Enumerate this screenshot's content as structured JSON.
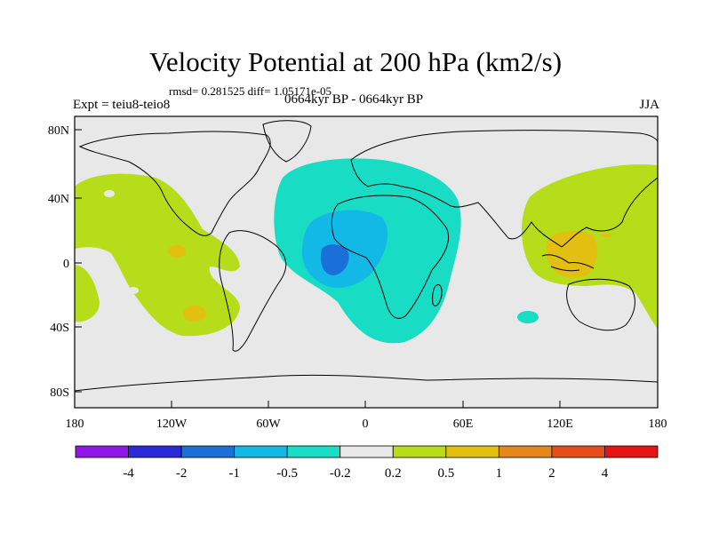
{
  "title": "Velocity Potential at 200 hPa (km2/s)",
  "stats": "rmsd= 0.281525  diff= 1.05171e-05",
  "left_label": "Expt = teiu8-teio8",
  "center_label": "0664kyr BP - 0664kyr BP",
  "right_label": "JJA",
  "lat_labels": [
    "80N",
    "40N",
    "0",
    "40S",
    "80S"
  ],
  "lon_labels": [
    "180",
    "120W",
    "60W",
    "0",
    "60E",
    "120E",
    "180"
  ],
  "colorbar": {
    "labels": [
      "-4",
      "-2",
      "-1",
      "-0.5",
      "-0.2",
      "0.2",
      "0.5",
      "1",
      "2",
      "4"
    ],
    "colors": [
      "#8f18e8",
      "#2a2ad8",
      "#1a6fd9",
      "#12b9e6",
      "#18dcc4",
      "#e8e8e8",
      "#b7dc1a",
      "#e2bf10",
      "#e5871a",
      "#e54e18",
      "#e41515"
    ]
  },
  "colors": {
    "land_outline": "#000000",
    "neutral": "#e8e8e8"
  }
}
